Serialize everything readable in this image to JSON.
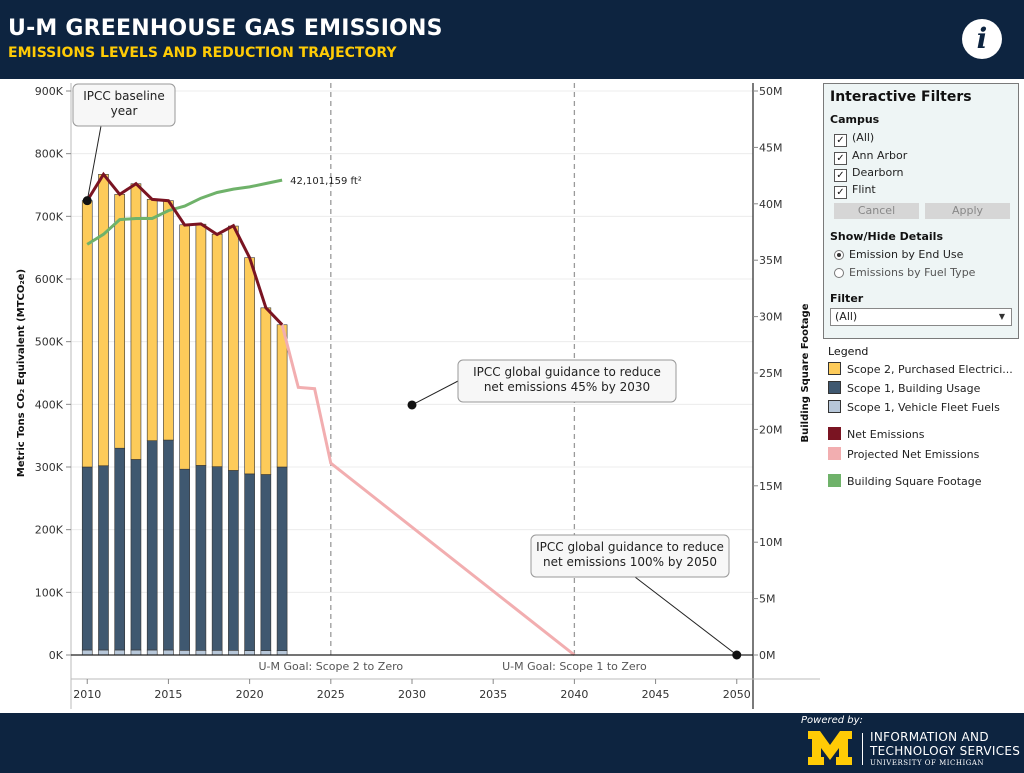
{
  "header": {
    "title": "U-M GREENHOUSE GAS EMISSIONS",
    "subtitle": "EMISSIONS LEVELS AND REDUCTION TRAJECTORY",
    "info_icon": "info-icon"
  },
  "filters": {
    "title": "Interactive Filters",
    "campus_label": "Campus",
    "campus_options": [
      {
        "label": "(All)",
        "checked": true
      },
      {
        "label": "Ann Arbor",
        "checked": true
      },
      {
        "label": "Dearborn",
        "checked": true
      },
      {
        "label": "Flint",
        "checked": true
      }
    ],
    "cancel_label": "Cancel",
    "apply_label": "Apply",
    "details_label": "Show/Hide Details",
    "details_options": [
      {
        "label": "Emission by End Use",
        "selected": true
      },
      {
        "label": "Emissions by Fuel Type",
        "selected": false
      }
    ],
    "filter_label": "Filter",
    "filter_value": "(All)"
  },
  "legend": {
    "title": "Legend",
    "items": [
      {
        "label": "Scope 2, Purchased Electrici...",
        "color": "#fdcb5a"
      },
      {
        "label": "Scope 1, Building Usage",
        "color": "#3f5870"
      },
      {
        "label": "Scope 1, Vehicle Fleet Fuels",
        "color": "#b7c7d9"
      },
      {
        "label": "Net Emissions",
        "color": "#7a1422"
      },
      {
        "label": "Projected Net Emissions",
        "color": "#f2aeb0"
      },
      {
        "label": "Building Square Footage",
        "color": "#6fb26a"
      }
    ]
  },
  "chart_data": {
    "type": "bar",
    "ylabel": "Metric Tons CO₂ Equivalent (MTCO₂e)",
    "y2label": "Building Square Footage",
    "xlim": [
      2009,
      2051
    ],
    "ylim": [
      0,
      900000
    ],
    "y2lim": [
      0,
      50000000
    ],
    "xticks": [
      {
        "value": 2010,
        "label": "2010"
      },
      {
        "value": 2015,
        "label": "2015"
      },
      {
        "value": 2020,
        "label": "2020"
      },
      {
        "value": 2025,
        "label": "2025"
      },
      {
        "value": 2030,
        "label": "2030"
      },
      {
        "value": 2035,
        "label": "2035"
      },
      {
        "value": 2040,
        "label": "2040"
      },
      {
        "value": 2045,
        "label": "2045"
      },
      {
        "value": 2050,
        "label": "2050"
      }
    ],
    "yticks": [
      {
        "value": 0,
        "label": "0K"
      },
      {
        "value": 100000,
        "label": "100K"
      },
      {
        "value": 200000,
        "label": "200K"
      },
      {
        "value": 300000,
        "label": "300K"
      },
      {
        "value": 400000,
        "label": "400K"
      },
      {
        "value": 500000,
        "label": "500K"
      },
      {
        "value": 600000,
        "label": "600K"
      },
      {
        "value": 700000,
        "label": "700K"
      },
      {
        "value": 800000,
        "label": "800K"
      },
      {
        "value": 900000,
        "label": "900K"
      }
    ],
    "y2ticks": [
      {
        "value": 0,
        "label": "0M"
      },
      {
        "value": 5000000,
        "label": "5M"
      },
      {
        "value": 10000000,
        "label": "10M"
      },
      {
        "value": 15000000,
        "label": "15M"
      },
      {
        "value": 20000000,
        "label": "20M"
      },
      {
        "value": 25000000,
        "label": "25M"
      },
      {
        "value": 30000000,
        "label": "30M"
      },
      {
        "value": 35000000,
        "label": "35M"
      },
      {
        "value": 40000000,
        "label": "40M"
      },
      {
        "value": 45000000,
        "label": "45M"
      },
      {
        "value": 50000000,
        "label": "50M"
      }
    ],
    "x": [
      2010,
      2011,
      2012,
      2013,
      2014,
      2015,
      2016,
      2017,
      2018,
      2019,
      2020,
      2021,
      2022
    ],
    "series": [
      {
        "name": "Scope 1, Vehicle Fleet Fuels",
        "color": "#b7c7d9",
        "values": [
          8000,
          8000,
          8000,
          8000,
          8000,
          8000,
          7500,
          7500,
          7500,
          7500,
          7000,
          7000,
          7000
        ]
      },
      {
        "name": "Scope 1, Building Usage",
        "color": "#3f5870",
        "values": [
          292000,
          294000,
          322000,
          304000,
          334000,
          335000,
          289000,
          295000,
          293000,
          287000,
          282000,
          281000,
          293000
        ]
      },
      {
        "name": "Scope 2, Purchased Electrici...",
        "color": "#fdcb5a",
        "values": [
          425000,
          465000,
          405000,
          440000,
          385000,
          382000,
          390000,
          385000,
          371000,
          390000,
          345000,
          266000,
          227000
        ]
      }
    ],
    "net_emissions": {
      "name": "Net Emissions",
      "color": "#7a1422",
      "x": [
        2010,
        2011,
        2012,
        2013,
        2014,
        2015,
        2016,
        2017,
        2018,
        2019,
        2020,
        2021,
        2022
      ],
      "y": [
        725000,
        767000,
        735000,
        752000,
        727000,
        725000,
        686000,
        688000,
        671000,
        685000,
        634000,
        554000,
        527000
      ]
    },
    "projected_net_emissions": {
      "name": "Projected Net Emissions",
      "color": "#f2aeb0",
      "x": [
        2022,
        2023,
        2024,
        2025,
        2040
      ],
      "y": [
        527000,
        427000,
        425000,
        306000,
        0
      ]
    },
    "building_square_footage": {
      "name": "Building Square Footage",
      "color": "#6fb26a",
      "x": [
        2010,
        2011,
        2012,
        2013,
        2014,
        2015,
        2016,
        2017,
        2018,
        2019,
        2020,
        2021,
        2022
      ],
      "y": [
        36400000,
        37300000,
        38600000,
        38700000,
        38700000,
        39400000,
        39800000,
        40500000,
        41000000,
        41300000,
        41500000,
        41800000,
        42101159
      ],
      "end_label": "42,101,159 ft²"
    },
    "goal_lines": [
      {
        "x": 2025,
        "label": "U-M Goal: Scope 2 to Zero"
      },
      {
        "x": 2040,
        "label": "U-M Goal: Scope 1 to Zero"
      }
    ],
    "annotations": [
      {
        "name": "ipcc-baseline-annotation",
        "lines": [
          "IPCC baseline",
          "year"
        ],
        "point_x": 2010,
        "point_y": 725000
      },
      {
        "name": "ipcc-2030-annotation",
        "lines": [
          "IPCC global guidance to reduce",
          "net emissions 45% by 2030"
        ],
        "point_x": 2030,
        "point_y": 399000
      },
      {
        "name": "ipcc-2050-annotation",
        "lines": [
          "IPCC global guidance to reduce",
          "net emissions 100% by 2050"
        ],
        "point_x": 2050,
        "point_y": 0
      }
    ]
  },
  "footer": {
    "powered_by": "Powered by:",
    "its_line1": "INFORMATION AND",
    "its_line2": "TECHNOLOGY SERVICES",
    "its_line3": "UNIVERSITY OF MICHIGAN",
    "logo_color": "#ffcb05"
  }
}
